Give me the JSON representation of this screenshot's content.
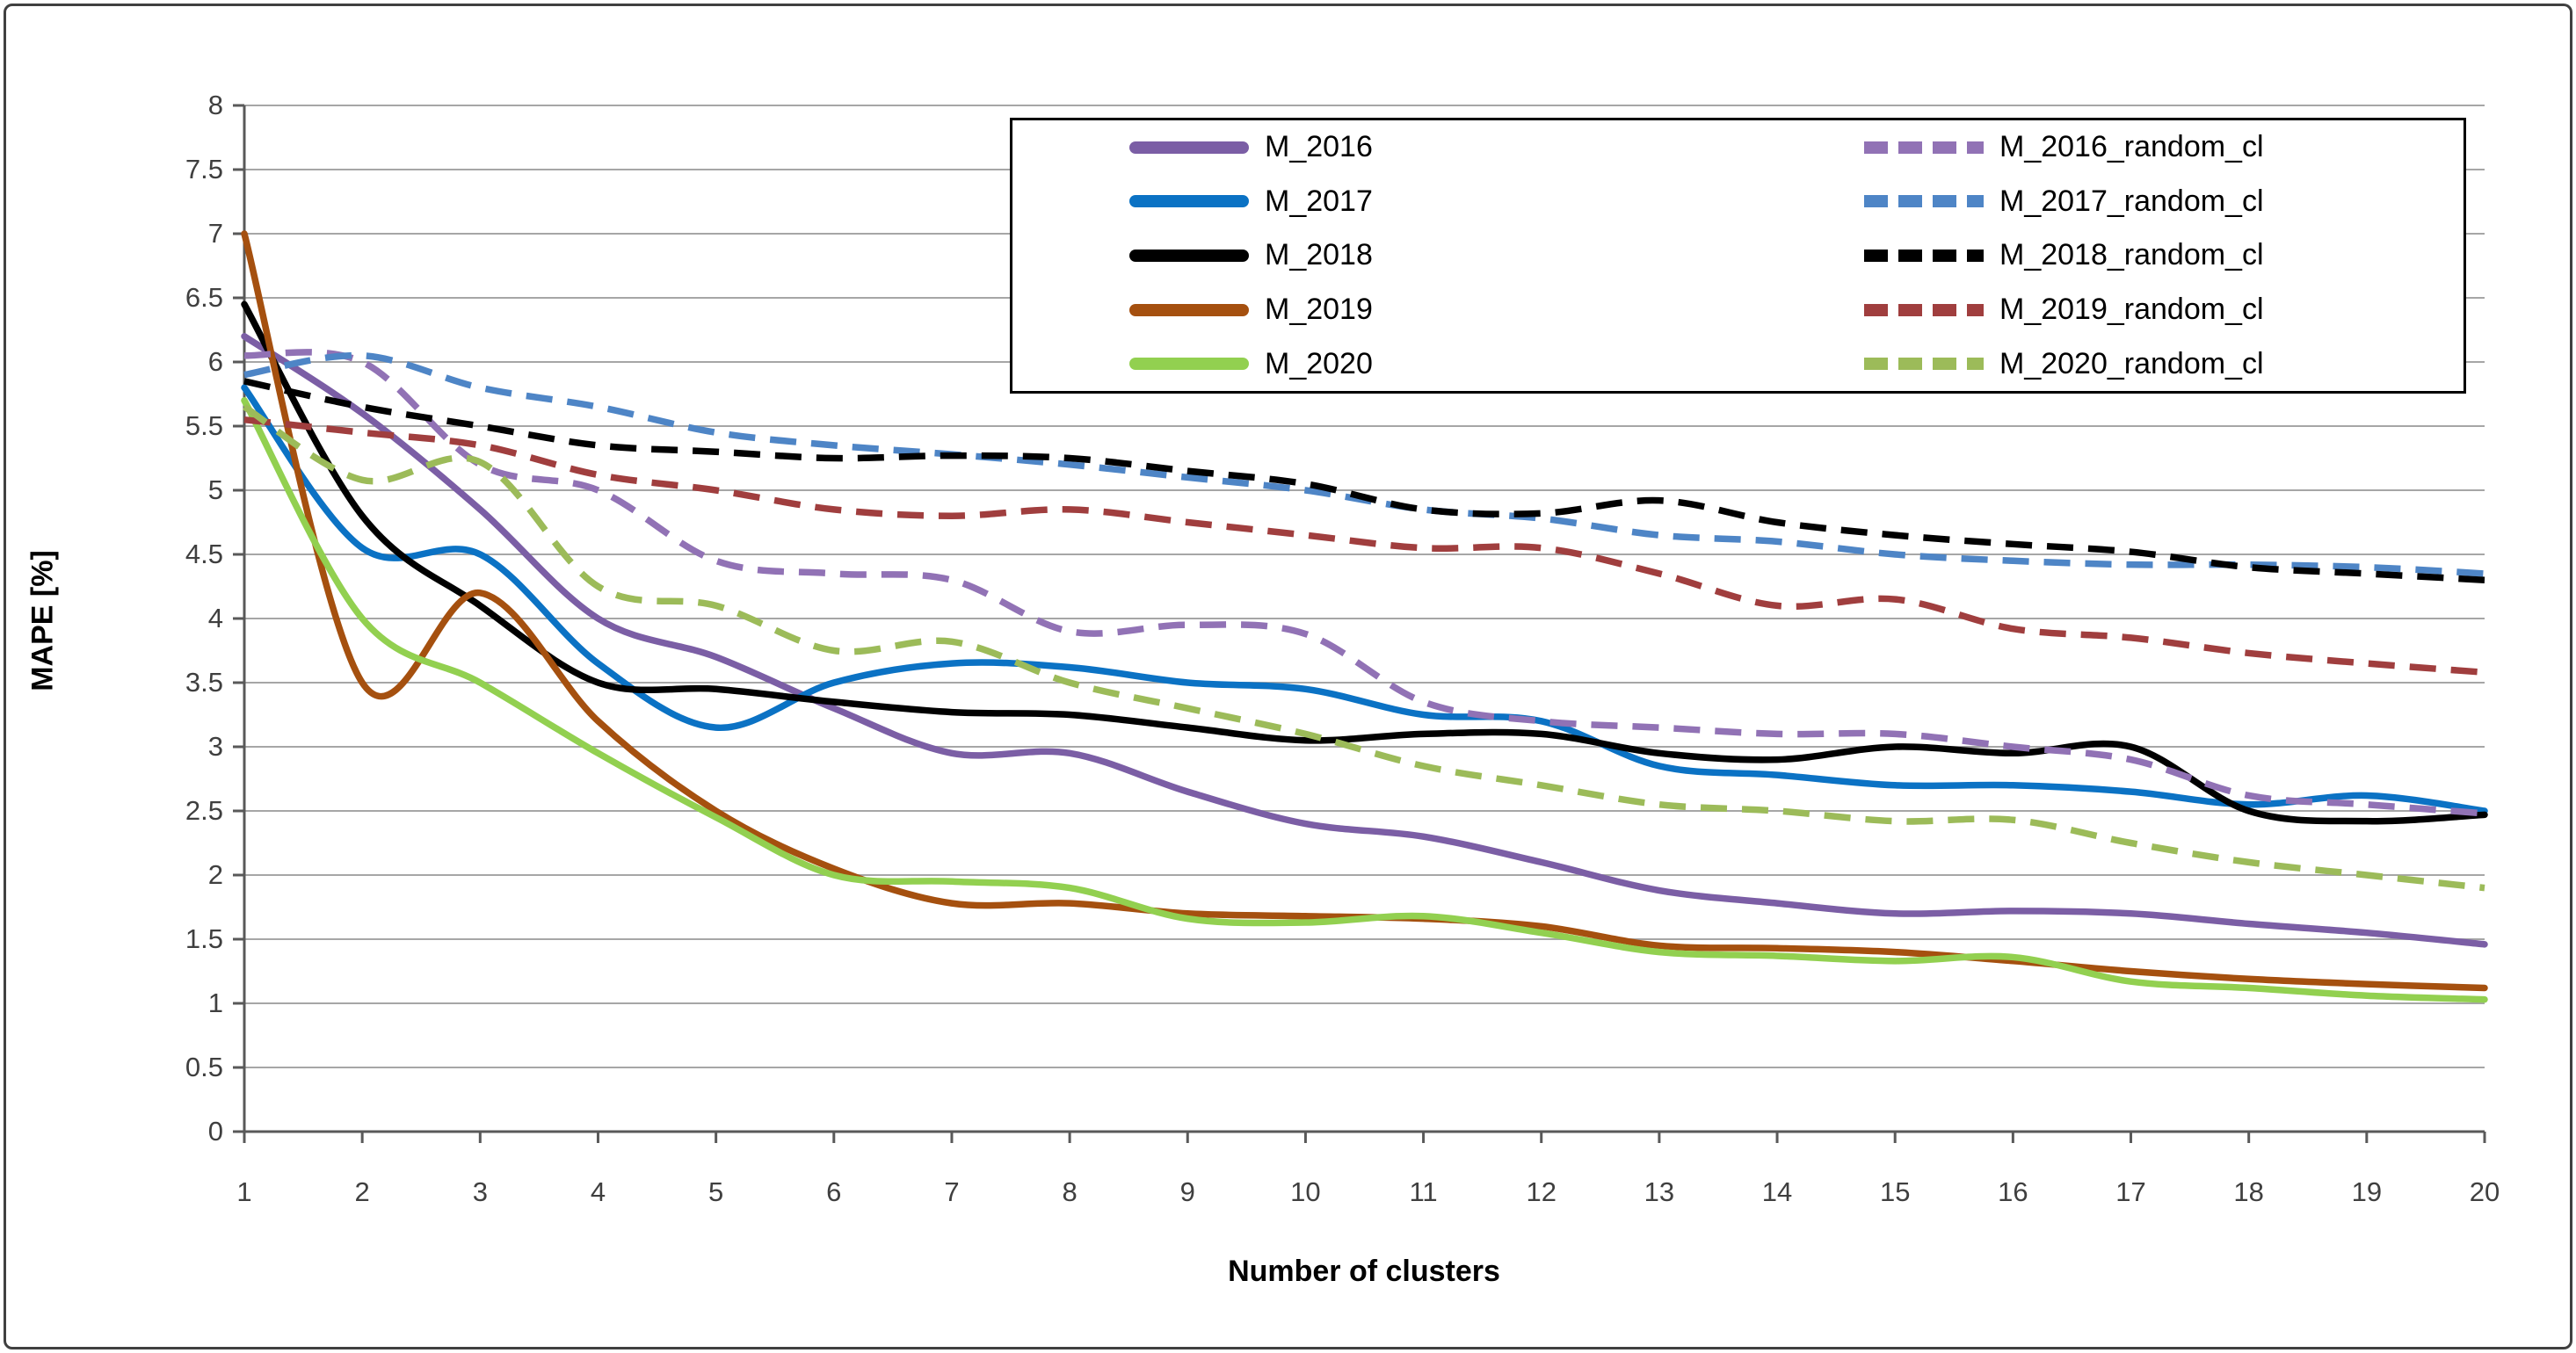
{
  "chart_data": {
    "type": "line",
    "title": "",
    "xlabel": "Number of clusters",
    "ylabel": "MAPE [%]",
    "x": [
      1,
      2,
      3,
      4,
      5,
      6,
      7,
      8,
      9,
      10,
      11,
      12,
      13,
      14,
      15,
      16,
      17,
      18,
      19,
      20
    ],
    "x_ticks": [
      "1",
      "2",
      "3",
      "4",
      "5",
      "6",
      "7",
      "8",
      "9",
      "10",
      "11",
      "12",
      "13",
      "14",
      "15",
      "16",
      "17",
      "18",
      "19",
      "20"
    ],
    "y_ticks": [
      "0",
      "0.5",
      "1",
      "1.5",
      "2",
      "2.5",
      "3",
      "3.5",
      "4",
      "4.5",
      "5",
      "5.5",
      "6",
      "6.5",
      "7",
      "7.5",
      "8"
    ],
    "ylim": [
      0,
      8
    ],
    "xlim": [
      1,
      20
    ],
    "grid": true,
    "legend_position": "top-center-inside",
    "series": [
      {
        "name": "M_2016",
        "color": "#7B5EA5",
        "dash": false,
        "values": [
          6.2,
          5.6,
          4.85,
          4.0,
          3.7,
          3.3,
          2.95,
          2.95,
          2.65,
          2.4,
          2.3,
          2.1,
          1.88,
          1.78,
          1.7,
          1.72,
          1.7,
          1.62,
          1.55,
          1.46
        ]
      },
      {
        "name": "M_2017",
        "color": "#0B72C4",
        "dash": false,
        "values": [
          5.8,
          4.55,
          4.5,
          3.65,
          3.15,
          3.5,
          3.65,
          3.62,
          3.5,
          3.45,
          3.25,
          3.2,
          2.85,
          2.78,
          2.7,
          2.7,
          2.65,
          2.55,
          2.62,
          2.5
        ]
      },
      {
        "name": "M_2018",
        "color": "#000000",
        "dash": false,
        "values": [
          6.45,
          4.8,
          4.1,
          3.5,
          3.45,
          3.35,
          3.27,
          3.25,
          3.15,
          3.05,
          3.1,
          3.1,
          2.95,
          2.9,
          3.0,
          2.95,
          3.0,
          2.5,
          2.42,
          2.47
        ]
      },
      {
        "name": "M_2019",
        "color": "#A5500F",
        "dash": false,
        "values": [
          7.0,
          3.5,
          4.2,
          3.2,
          2.5,
          2.05,
          1.78,
          1.78,
          1.7,
          1.68,
          1.66,
          1.6,
          1.45,
          1.43,
          1.4,
          1.33,
          1.25,
          1.19,
          1.15,
          1.12
        ]
      },
      {
        "name": "M_2020",
        "color": "#92D050",
        "dash": false,
        "values": [
          5.7,
          4.0,
          3.5,
          2.95,
          2.45,
          2.0,
          1.95,
          1.9,
          1.66,
          1.63,
          1.68,
          1.55,
          1.4,
          1.37,
          1.33,
          1.36,
          1.17,
          1.12,
          1.06,
          1.03
        ]
      },
      {
        "name": "M_2016_random_cl",
        "color": "#9172B5",
        "dash": true,
        "values": [
          6.05,
          6.0,
          5.2,
          5.0,
          4.45,
          4.35,
          4.3,
          3.9,
          3.95,
          3.88,
          3.35,
          3.2,
          3.15,
          3.1,
          3.1,
          3.0,
          2.9,
          2.62,
          2.55,
          2.48
        ]
      },
      {
        "name": "M_2017_random_cl",
        "color": "#4E85C6",
        "dash": true,
        "values": [
          5.9,
          6.05,
          5.8,
          5.65,
          5.45,
          5.35,
          5.28,
          5.2,
          5.1,
          5.0,
          4.85,
          4.78,
          4.65,
          4.6,
          4.5,
          4.45,
          4.42,
          4.42,
          4.4,
          4.35
        ]
      },
      {
        "name": "M_2018_random_cl",
        "color": "#000000",
        "dash": true,
        "values": [
          5.85,
          5.65,
          5.5,
          5.35,
          5.3,
          5.25,
          5.27,
          5.25,
          5.15,
          5.05,
          4.85,
          4.82,
          4.92,
          4.75,
          4.65,
          4.58,
          4.52,
          4.4,
          4.35,
          4.3
        ]
      },
      {
        "name": "M_2019_random_cl",
        "color": "#A03E3E",
        "dash": true,
        "values": [
          5.55,
          5.45,
          5.35,
          5.12,
          5.0,
          4.85,
          4.8,
          4.85,
          4.75,
          4.65,
          4.55,
          4.55,
          4.35,
          4.1,
          4.15,
          3.92,
          3.85,
          3.73,
          3.65,
          3.58
        ]
      },
      {
        "name": "M_2020_random_cl",
        "color": "#9CBB59",
        "dash": true,
        "values": [
          5.65,
          5.08,
          5.22,
          4.25,
          4.1,
          3.75,
          3.82,
          3.5,
          3.3,
          3.1,
          2.85,
          2.7,
          2.55,
          2.5,
          2.42,
          2.43,
          2.25,
          2.1,
          2.0,
          1.9
        ]
      }
    ],
    "colors": {
      "gridline": "#A6A6A6",
      "axis": "#595959",
      "tick_text": "#3F3F3F",
      "background": "#FFFFFF"
    }
  }
}
